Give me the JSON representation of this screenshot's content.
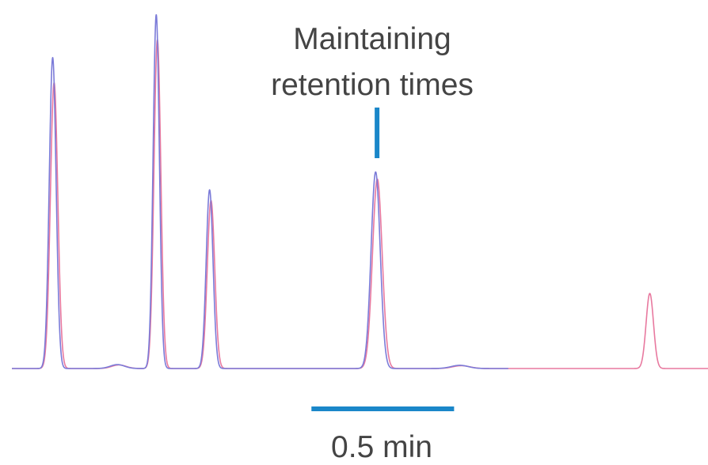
{
  "chart_data": {
    "type": "line",
    "title": "",
    "xlabel": "",
    "ylabel": "",
    "xlim": [
      0,
      2.44
    ],
    "ylim": [
      0,
      1.0
    ],
    "grid": false,
    "legend": "none",
    "annotations": {
      "peak_label_line1": "Maintaining",
      "peak_label_line2": "retention times",
      "scale_bar_label": "0.5 min",
      "scale_bar_minutes": 0.5,
      "scale_bar_start": 1.05,
      "marker_x": 1.28
    },
    "baseline_end": {
      "blue": 1.74,
      "red": 2.44
    },
    "series": [
      {
        "color": "#7b7bd8",
        "peaks": [
          {
            "x": 0.143,
            "height": 0.87,
            "width": 0.012
          },
          {
            "x": 0.506,
            "height": 0.99,
            "width": 0.011
          },
          {
            "x": 0.693,
            "height": 0.5,
            "width": 0.012
          },
          {
            "x": 1.275,
            "height": 0.55,
            "width": 0.016
          },
          {
            "x": 2.23,
            "height": 0.22,
            "width": 0.012
          },
          {
            "x": 0.37,
            "height": 0.011,
            "width": 0.025
          },
          {
            "x": 1.57,
            "height": 0.009,
            "width": 0.03
          }
        ]
      },
      {
        "color": "#e8799f",
        "peaks": [
          {
            "x": 0.148,
            "height": 0.8,
            "width": 0.013
          },
          {
            "x": 0.51,
            "height": 0.92,
            "width": 0.012
          },
          {
            "x": 0.698,
            "height": 0.47,
            "width": 0.013
          },
          {
            "x": 1.281,
            "height": 0.53,
            "width": 0.017
          },
          {
            "x": 2.236,
            "height": 0.21,
            "width": 0.013
          },
          {
            "x": 0.375,
            "height": 0.01,
            "width": 0.025
          },
          {
            "x": 1.575,
            "height": 0.008,
            "width": 0.03
          }
        ]
      }
    ]
  },
  "colors": {
    "accent": "#1a87c9",
    "label": "#444444"
  }
}
